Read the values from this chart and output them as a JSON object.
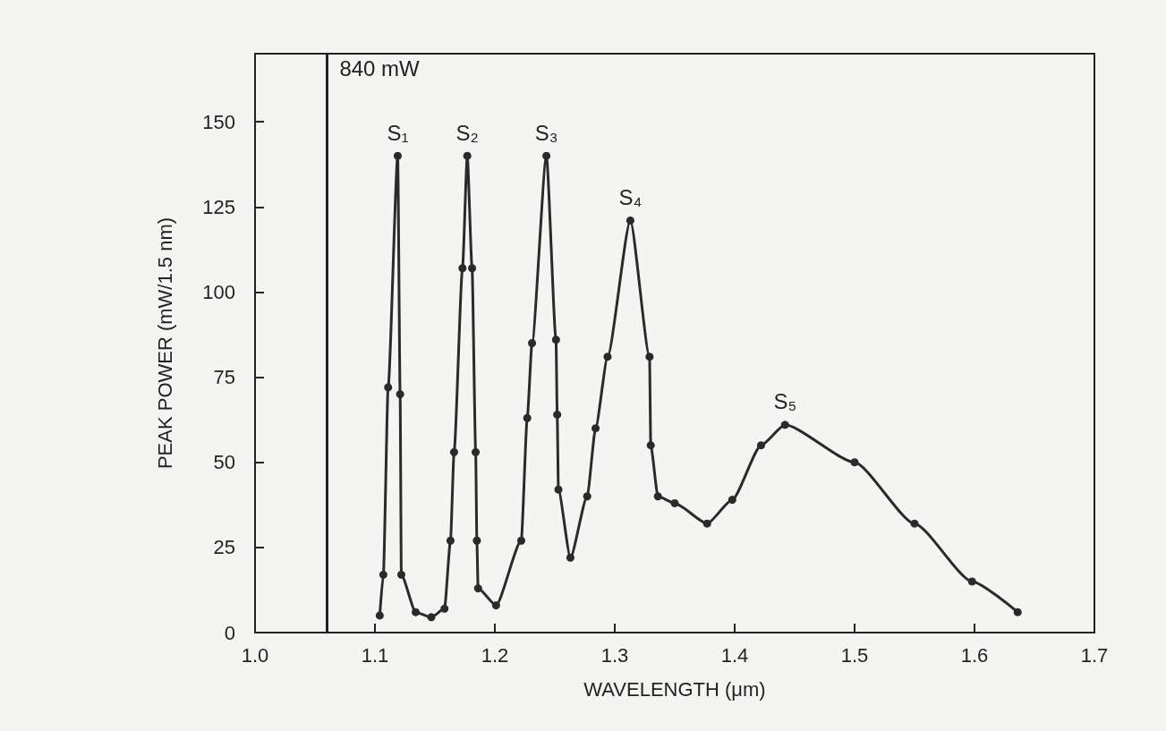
{
  "chart_data": {
    "type": "line",
    "xlabel": "WAVELENGTH (μm)",
    "ylabel": "PEAK POWER (mW/1.5 nm)",
    "xlim": [
      1.0,
      1.7
    ],
    "xticks": [
      {
        "value": 1.0,
        "label": "1.0"
      },
      1.1,
      1.2,
      1.3,
      1.4,
      1.5,
      1.6,
      1.7
    ],
    "ylim": [
      0,
      170
    ],
    "yticks": [
      0,
      25,
      50,
      75,
      100,
      125,
      150
    ],
    "grid": false,
    "marker": "circle",
    "line_style": "solid",
    "series": [
      {
        "color": "#2a2a2a",
        "x": [
          1.104,
          1.107,
          1.111,
          1.119,
          1.121,
          1.122,
          1.134,
          1.147,
          1.158,
          1.163,
          1.166,
          1.173,
          1.177,
          1.181,
          1.184,
          1.185,
          1.186,
          1.201,
          1.222,
          1.227,
          1.231,
          1.243,
          1.251,
          1.252,
          1.253,
          1.263,
          1.277,
          1.284,
          1.294,
          1.313,
          1.329,
          1.33,
          1.336,
          1.35,
          1.377,
          1.398,
          1.422,
          1.442,
          1.5,
          1.55,
          1.598,
          1.636
        ],
        "values": [
          5,
          17,
          72,
          140,
          70,
          17,
          6,
          4.5,
          7,
          27,
          53,
          107,
          140,
          107,
          53,
          27,
          13,
          8,
          27,
          63,
          85,
          140,
          86,
          64,
          42,
          22,
          40,
          60,
          81,
          121,
          81,
          55,
          40,
          38,
          32,
          39,
          55,
          61,
          50,
          32,
          15,
          6
        ]
      }
    ],
    "ref_lines": [
      {
        "axis": "x",
        "value": 1.06,
        "label": "840 mW"
      }
    ],
    "annotations": [
      {
        "text": "S₁",
        "x": 1.119,
        "y": 140
      },
      {
        "text": "S₂",
        "x": 1.177,
        "y": 140
      },
      {
        "text": "S₃",
        "x": 1.243,
        "y": 140
      },
      {
        "text": "S₄",
        "x": 1.313,
        "y": 121
      },
      {
        "text": "S₅",
        "x": 1.442,
        "y": 61
      }
    ]
  }
}
